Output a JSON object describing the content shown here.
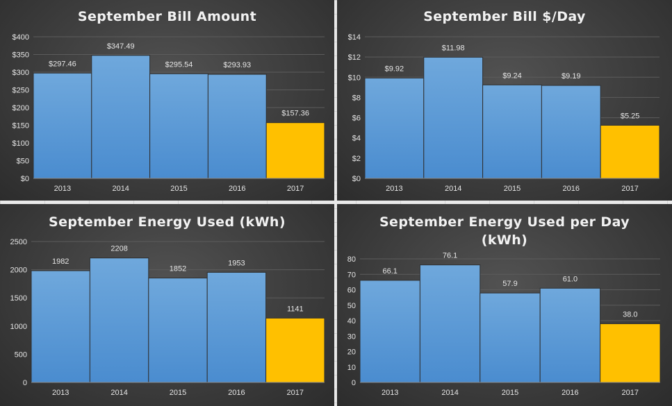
{
  "chart_data": [
    {
      "type": "bar",
      "title": "September Bill Amount",
      "categories": [
        "2013",
        "2014",
        "2015",
        "2016",
        "2017"
      ],
      "values": [
        297.46,
        347.49,
        295.54,
        293.93,
        157.36
      ],
      "data_labels": [
        "$297.46",
        "$347.49",
        "$295.54",
        "$293.93",
        "$157.36"
      ],
      "ylim": [
        0,
        400
      ],
      "yticks": [
        0,
        50,
        100,
        150,
        200,
        250,
        300,
        350,
        400
      ],
      "ytick_labels": [
        "$0",
        "$50",
        "$100",
        "$150",
        "$200",
        "$250",
        "$300",
        "$350",
        "$400"
      ],
      "grid": true,
      "bar_colors": [
        "#5b9bd5",
        "#5b9bd5",
        "#5b9bd5",
        "#5b9bd5",
        "#ffc000"
      ]
    },
    {
      "type": "bar",
      "title": "September Bill $/Day",
      "categories": [
        "2013",
        "2014",
        "2015",
        "2016",
        "2017"
      ],
      "values": [
        9.92,
        11.98,
        9.24,
        9.19,
        5.25
      ],
      "data_labels": [
        "$9.92",
        "$11.98",
        "$9.24",
        "$9.19",
        "$5.25"
      ],
      "ylim": [
        0,
        14
      ],
      "yticks": [
        0,
        2,
        4,
        6,
        8,
        10,
        12,
        14
      ],
      "ytick_labels": [
        "$0",
        "$2",
        "$4",
        "$6",
        "$8",
        "$10",
        "$12",
        "$14"
      ],
      "grid": true,
      "bar_colors": [
        "#5b9bd5",
        "#5b9bd5",
        "#5b9bd5",
        "#5b9bd5",
        "#ffc000"
      ]
    },
    {
      "type": "bar",
      "title": "September Energy Used (kWh)",
      "categories": [
        "2013",
        "2014",
        "2015",
        "2016",
        "2017"
      ],
      "values": [
        1982,
        2208,
        1852,
        1953,
        1141
      ],
      "data_labels": [
        "1982",
        "2208",
        "1852",
        "1953",
        "1141"
      ],
      "ylim": [
        0,
        2500
      ],
      "yticks": [
        0,
        500,
        1000,
        1500,
        2000,
        2500
      ],
      "ytick_labels": [
        "0",
        "500",
        "1000",
        "1500",
        "2000",
        "2500"
      ],
      "grid": true,
      "bar_colors": [
        "#5b9bd5",
        "#5b9bd5",
        "#5b9bd5",
        "#5b9bd5",
        "#ffc000"
      ]
    },
    {
      "type": "bar",
      "title": "September Energy Used per Day (kWh)",
      "title_lines": [
        "September Energy Used per Day",
        "(kWh)"
      ],
      "categories": [
        "2013",
        "2014",
        "2015",
        "2016",
        "2017"
      ],
      "values": [
        66.1,
        76.1,
        57.9,
        61.0,
        38.0
      ],
      "data_labels": [
        "66.1",
        "76.1",
        "57.9",
        "61.0",
        "38.0"
      ],
      "ylim": [
        0,
        80
      ],
      "yticks": [
        0,
        10,
        20,
        30,
        40,
        50,
        60,
        70,
        80
      ],
      "ytick_labels": [
        "0",
        "10",
        "20",
        "30",
        "40",
        "50",
        "60",
        "70",
        "80"
      ],
      "grid": true,
      "bar_colors": [
        "#5b9bd5",
        "#5b9bd5",
        "#5b9bd5",
        "#5b9bd5",
        "#ffc000"
      ]
    }
  ]
}
